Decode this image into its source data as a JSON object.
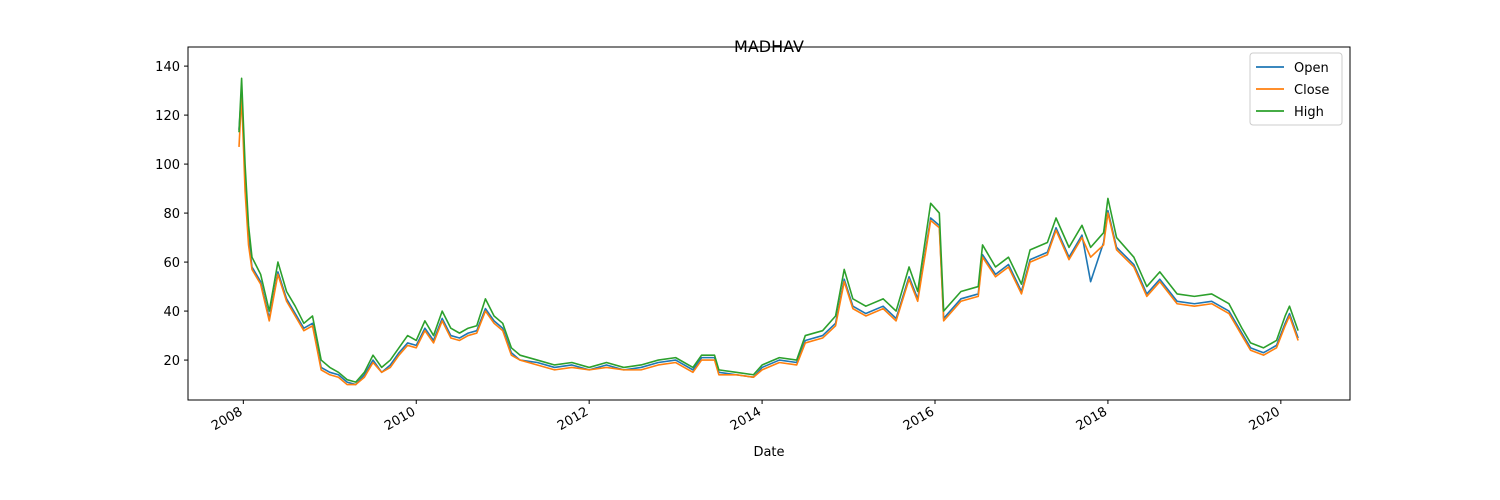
{
  "chart_data": {
    "type": "line",
    "title": "MADHAV",
    "x_label": "Date",
    "x": [
      2007.95,
      2007.98,
      2008.02,
      2008.06,
      2008.1,
      2008.2,
      2008.3,
      2008.4,
      2008.5,
      2008.6,
      2008.7,
      2008.8,
      2008.9,
      2009.0,
      2009.1,
      2009.2,
      2009.3,
      2009.4,
      2009.5,
      2009.6,
      2009.7,
      2009.8,
      2009.9,
      2010.0,
      2010.1,
      2010.2,
      2010.3,
      2010.4,
      2010.5,
      2010.6,
      2010.7,
      2010.8,
      2010.9,
      2011.0,
      2011.1,
      2011.2,
      2011.4,
      2011.6,
      2011.8,
      2012.0,
      2012.2,
      2012.4,
      2012.6,
      2012.8,
      2013.0,
      2013.2,
      2013.3,
      2013.45,
      2013.5,
      2013.7,
      2013.9,
      2014.0,
      2014.2,
      2014.4,
      2014.5,
      2014.7,
      2014.85,
      2014.95,
      2015.05,
      2015.2,
      2015.4,
      2015.55,
      2015.7,
      2015.8,
      2015.95,
      2016.05,
      2016.1,
      2016.3,
      2016.5,
      2016.55,
      2016.7,
      2016.85,
      2017.0,
      2017.1,
      2017.3,
      2017.4,
      2017.55,
      2017.7,
      2017.8,
      2017.95,
      2018.0,
      2018.1,
      2018.3,
      2018.45,
      2018.6,
      2018.8,
      2019.0,
      2019.2,
      2019.4,
      2019.55,
      2019.65,
      2019.8,
      2019.95,
      2020.05,
      2020.1,
      2020.2
    ],
    "series": [
      {
        "name": "Open",
        "color": "#1f77b4",
        "values": [
          114,
          130,
          95,
          70,
          58,
          52,
          37,
          56,
          45,
          39,
          33,
          35,
          17,
          15,
          14,
          11,
          10,
          14,
          20,
          15,
          18,
          23,
          27,
          26,
          33,
          28,
          37,
          30,
          29,
          31,
          32,
          41,
          36,
          33,
          23,
          20,
          19,
          17,
          18,
          16,
          18,
          16,
          17,
          19,
          20,
          16,
          21,
          21,
          15,
          14,
          13,
          17,
          20,
          19,
          28,
          30,
          35,
          53,
          42,
          39,
          42,
          37,
          54,
          45,
          78,
          75,
          37,
          45,
          47,
          63,
          55,
          59,
          48,
          61,
          64,
          74,
          62,
          71,
          52,
          68,
          81,
          66,
          59,
          47,
          53,
          44,
          43,
          44,
          40,
          31,
          25,
          23,
          26,
          35,
          39,
          29
        ]
      },
      {
        "name": "Close",
        "color": "#ff7f0e",
        "values": [
          107,
          128,
          89,
          67,
          57,
          51,
          36,
          55,
          44,
          38,
          32,
          34,
          16,
          14,
          13,
          10,
          10,
          13,
          19,
          15,
          17,
          22,
          26,
          25,
          32,
          27,
          36,
          29,
          28,
          30,
          31,
          40,
          35,
          32,
          22,
          20,
          18,
          16,
          17,
          16,
          17,
          16,
          16,
          18,
          19,
          15,
          20,
          20,
          14,
          14,
          13,
          16,
          19,
          18,
          27,
          29,
          34,
          52,
          41,
          38,
          41,
          36,
          53,
          44,
          77,
          74,
          36,
          44,
          46,
          62,
          54,
          58,
          47,
          60,
          63,
          73,
          61,
          70,
          62,
          67,
          80,
          65,
          58,
          46,
          52,
          43,
          42,
          43,
          39,
          30,
          24,
          22,
          25,
          34,
          38,
          28
        ]
      },
      {
        "name": "High",
        "color": "#2ca02c",
        "values": [
          113,
          135,
          100,
          75,
          62,
          55,
          40,
          60,
          48,
          42,
          35,
          38,
          20,
          17,
          15,
          12,
          11,
          15,
          22,
          17,
          20,
          25,
          30,
          28,
          36,
          30,
          40,
          33,
          31,
          33,
          34,
          45,
          38,
          35,
          25,
          22,
          20,
          18,
          19,
          17,
          19,
          17,
          18,
          20,
          21,
          17,
          22,
          22,
          16,
          15,
          14,
          18,
          21,
          20,
          30,
          32,
          38,
          57,
          45,
          42,
          45,
          40,
          58,
          48,
          84,
          80,
          40,
          48,
          50,
          67,
          58,
          62,
          51,
          65,
          68,
          78,
          66,
          75,
          66,
          72,
          86,
          70,
          62,
          50,
          56,
          47,
          46,
          47,
          43,
          33,
          27,
          25,
          28,
          38,
          42,
          32
        ]
      }
    ],
    "xlim": [
      2007.36,
      2020.8
    ],
    "xticks": [
      2008,
      2010,
      2012,
      2014,
      2016,
      2018,
      2020
    ],
    "ylim": [
      3.7,
      147.8
    ],
    "yticks": [
      20,
      40,
      60,
      80,
      100,
      120,
      140
    ],
    "grid": false,
    "legend": "upper right"
  }
}
